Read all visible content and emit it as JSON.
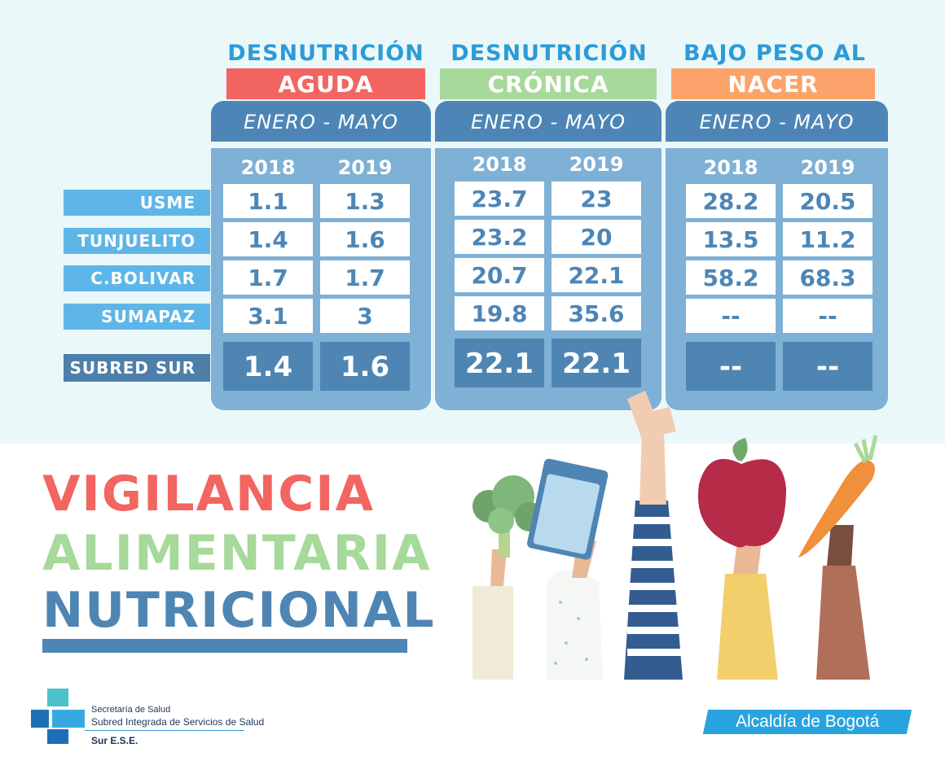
{
  "categories": [
    {
      "top": "DESNUTRICIÓN",
      "bottom": "AGUDA",
      "color": "#f26560",
      "period": "ENERO - MAYO",
      "years": [
        "2018",
        "2019"
      ],
      "values": [
        [
          "1.1",
          "1.3"
        ],
        [
          "1.4",
          "1.6"
        ],
        [
          "1.7",
          "1.7"
        ],
        [
          "3.1",
          "3"
        ]
      ],
      "total": [
        "1.4",
        "1.6"
      ]
    },
    {
      "top": "DESNUTRICIÓN",
      "bottom": "CRÓNICA",
      "color": "#a7d99a",
      "period": "ENERO - MAYO",
      "years": [
        "2018",
        "2019"
      ],
      "values": [
        [
          "23.7",
          "23"
        ],
        [
          "23.2",
          "20"
        ],
        [
          "20.7",
          "22.1"
        ],
        [
          "19.8",
          "35.6"
        ]
      ],
      "total": [
        "22.1",
        "22.1"
      ]
    },
    {
      "top": "BAJO PESO AL",
      "bottom": "NACER",
      "color": "#fba36a",
      "period": "ENERO - MAYO",
      "years": [
        "2018",
        "2019"
      ],
      "values": [
        [
          "28.2",
          "20.5"
        ],
        [
          "13.5",
          "11.2"
        ],
        [
          "58.2",
          "68.3"
        ],
        [
          "--",
          "--"
        ]
      ],
      "total": [
        "--",
        "--"
      ]
    }
  ],
  "rows": [
    "USME",
    "TUNJUELITO",
    "C.BOLIVAR",
    "SUMAPAZ"
  ],
  "total_row": "SUBRED SUR",
  "title": [
    {
      "text": "VIGILANCIA",
      "color": "#f26560"
    },
    {
      "text": "ALIMENTARIA",
      "color": "#a7d99a"
    },
    {
      "text": "NUTRICIONAL",
      "color": "#4e85b3"
    }
  ],
  "logo": {
    "line1": "Secretaría de Salud",
    "line2": "Subred Integrada de Servicios de Salud",
    "line3": "Sur E.S.E."
  },
  "alcaldia": "Alcaldía de Bogotá",
  "illustration": {
    "items": [
      "broccoli-icon",
      "water-glass-icon",
      "raised-hand-icon",
      "apple-icon",
      "carrot-icon"
    ]
  }
}
